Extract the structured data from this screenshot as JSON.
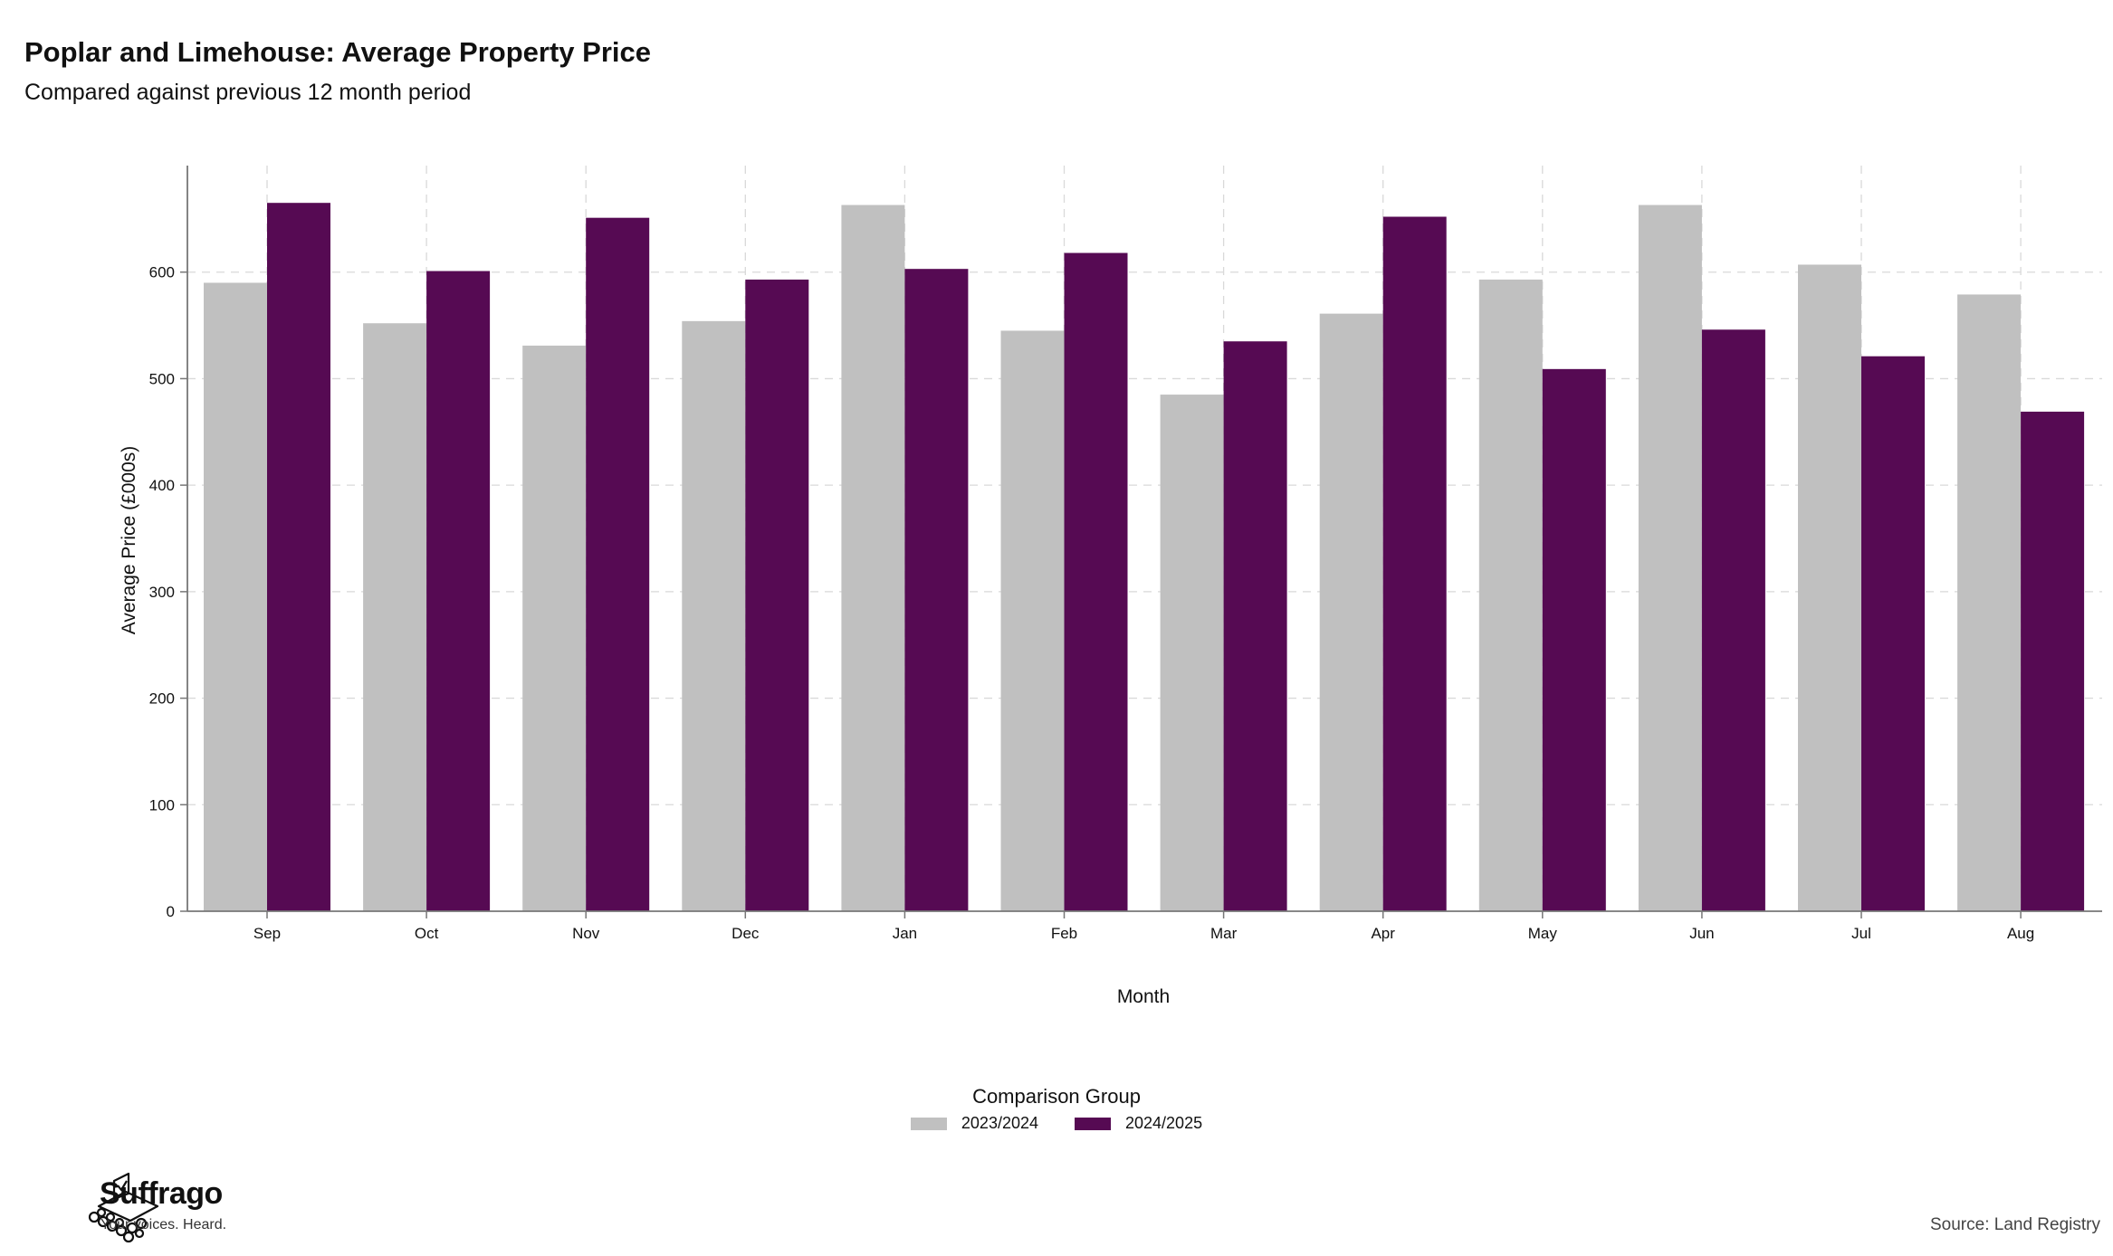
{
  "header": {
    "title": "Poplar and Limehouse: Average Property Price",
    "subtitle": "Compared against previous 12 month period"
  },
  "chart_data": {
    "type": "bar",
    "categories": [
      "Sep",
      "Oct",
      "Nov",
      "Dec",
      "Jan",
      "Feb",
      "Mar",
      "Apr",
      "May",
      "Jun",
      "Jul",
      "Aug"
    ],
    "series": [
      {
        "name": "2023/2024",
        "color": "#c0c0c0",
        "values": [
          590,
          552,
          531,
          554,
          663,
          545,
          485,
          561,
          593,
          663,
          607,
          579
        ]
      },
      {
        "name": "2024/2025",
        "color": "#560a53",
        "values": [
          665,
          601,
          651,
          593,
          603,
          618,
          535,
          652,
          509,
          546,
          521,
          469
        ]
      }
    ],
    "xlabel": "Month",
    "ylabel": "Average Price (£000s)",
    "ylim": [
      0,
      700
    ],
    "yticks": [
      0,
      100,
      200,
      300,
      400,
      500,
      600
    ],
    "grid": true,
    "legend_title": "Comparison Group",
    "legend_position": "bottom"
  },
  "branding": {
    "name": "Suffrago",
    "tagline": "Your voices. Heard.",
    "icon": "ballot-box-icon"
  },
  "source": "Source: Land Registry"
}
